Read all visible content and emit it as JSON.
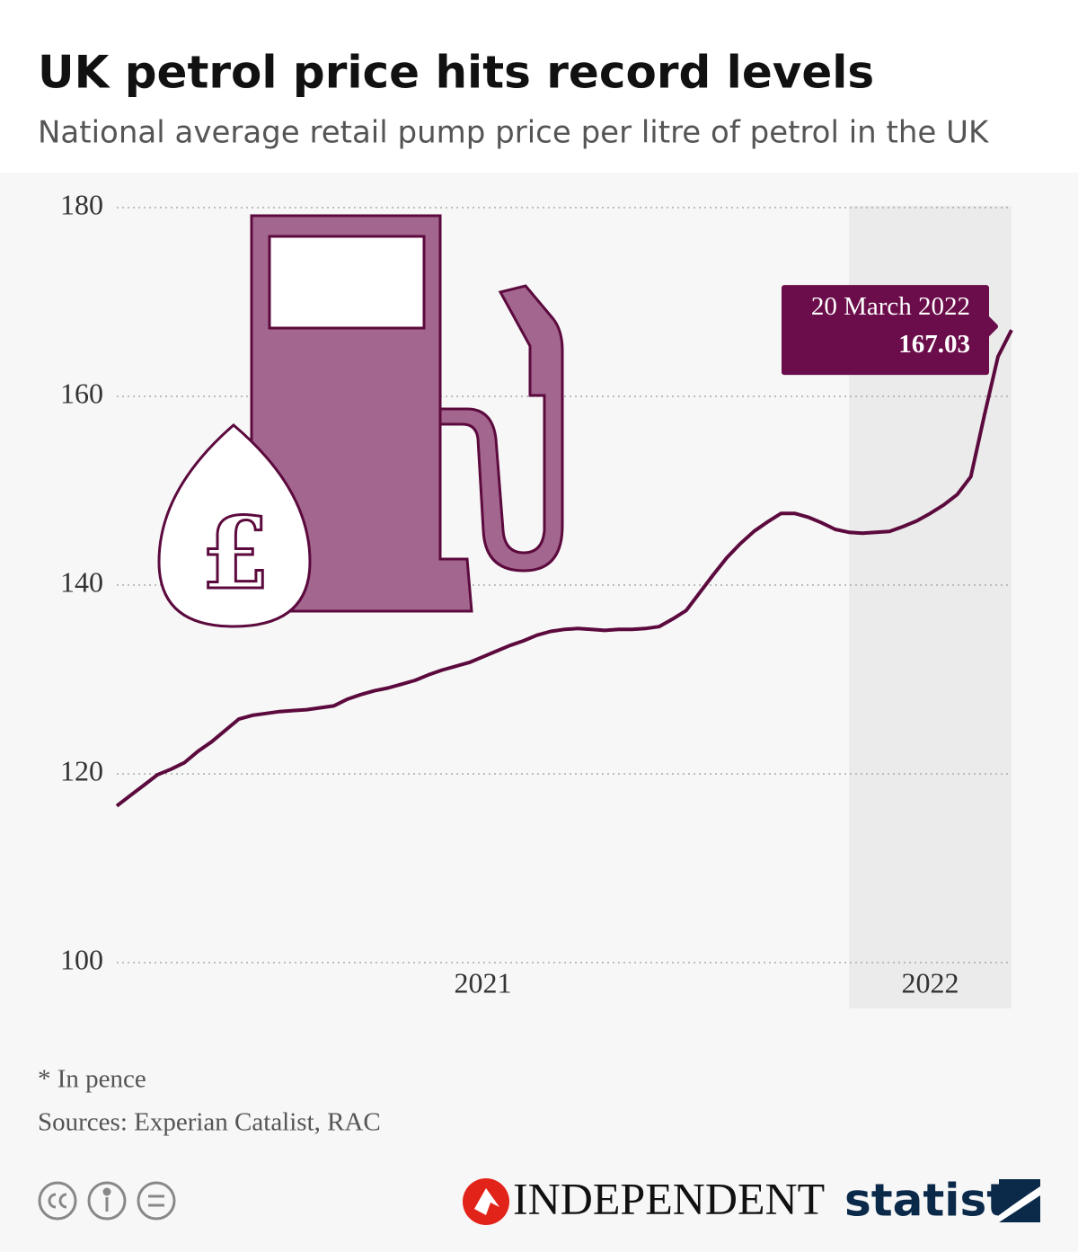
{
  "chart_data": {
    "type": "line",
    "title": "UK petrol price hits record levels",
    "subtitle": "National average retail pump price per litre of petrol in the UK",
    "categories": [
      null,
      null,
      null,
      null,
      null,
      null,
      null,
      null,
      null,
      null,
      null,
      null,
      null,
      null,
      null,
      null,
      null,
      null,
      null,
      null,
      null,
      null,
      null,
      null,
      null,
      null,
      null,
      "2021",
      null,
      null,
      null,
      null,
      null,
      null,
      null,
      null,
      null,
      null,
      null,
      null,
      null,
      null,
      null,
      null,
      null,
      null,
      null,
      null,
      null,
      null,
      null,
      null,
      null,
      null,
      null,
      null,
      null,
      null,
      null,
      null,
      "2022",
      null,
      null,
      null,
      null,
      null,
      null
    ],
    "values": [
      116.6,
      117.7,
      118.8,
      119.9,
      120.5,
      121.2,
      122.4,
      123.4,
      124.6,
      125.8,
      126.2,
      126.4,
      126.6,
      126.7,
      126.8,
      127.0,
      127.2,
      127.9,
      128.4,
      128.8,
      129.1,
      129.5,
      129.9,
      130.5,
      131.0,
      131.4,
      131.8,
      132.4,
      133.0,
      133.6,
      134.1,
      134.7,
      135.1,
      135.3,
      135.4,
      135.3,
      135.2,
      135.3,
      135.3,
      135.4,
      135.6,
      136.4,
      137.3,
      139.2,
      141.1,
      142.9,
      144.4,
      145.7,
      146.7,
      147.6,
      147.6,
      147.2,
      146.6,
      145.9,
      145.6,
      145.5,
      145.6,
      145.7,
      146.2,
      146.8,
      147.6,
      148.5,
      149.6,
      151.5,
      158.0,
      164.2,
      167.03
    ],
    "color": "#5c0a3e",
    "ylim": [
      100,
      180
    ],
    "yticks": [
      100,
      120,
      140,
      160,
      180
    ],
    "grid": true,
    "annotation": "20 March 2022",
    "icon_symbol": "£"
  },
  "footer": {
    "note": "* In pence",
    "sources": "Sources: Experian Catalist, RAC",
    "partner": "INDEPENDENT",
    "brand": "statista"
  }
}
